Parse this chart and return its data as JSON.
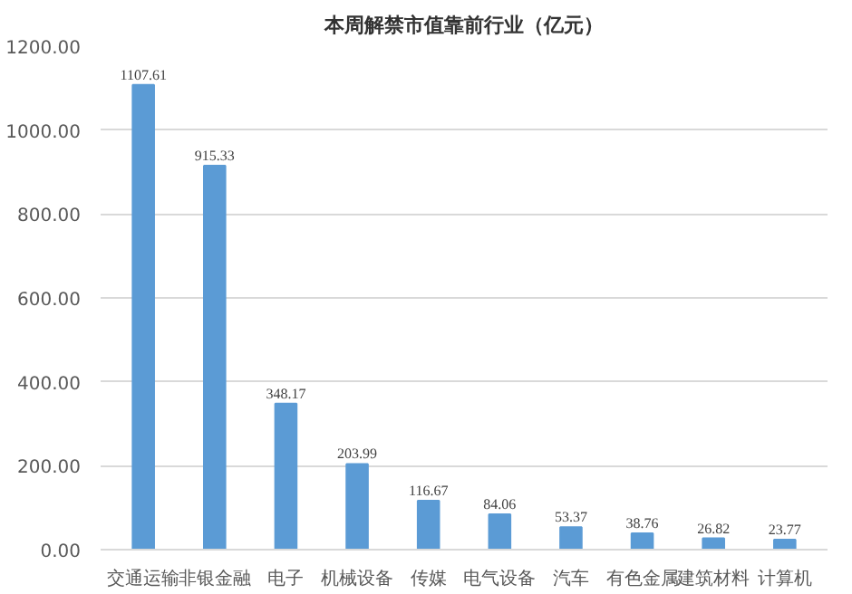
{
  "chart_data": {
    "type": "bar",
    "title": "本周解禁市值靠前行业（亿元）",
    "categories": [
      "交通运输",
      "非银金融",
      "电子",
      "机械设备",
      "传媒",
      "电气设备",
      "汽车",
      "有色金属",
      "建筑材料",
      "计算机"
    ],
    "values": [
      1107.61,
      915.33,
      348.17,
      203.99,
      116.67,
      84.06,
      53.37,
      38.76,
      26.82,
      23.77
    ],
    "color": "#5b9bd5",
    "ylim": [
      0,
      1200
    ],
    "yticks": [
      {
        "value": 0,
        "label": "0.00"
      },
      {
        "value": 200,
        "label": "200.00"
      },
      {
        "value": 400,
        "label": "400.00"
      },
      {
        "value": 600,
        "label": "600.00"
      },
      {
        "value": 800,
        "label": "800.00"
      },
      {
        "value": 1000,
        "label": "1000.00"
      },
      {
        "value": 1200,
        "label": "1200.00"
      }
    ],
    "grid": "y",
    "data_labels": true
  }
}
